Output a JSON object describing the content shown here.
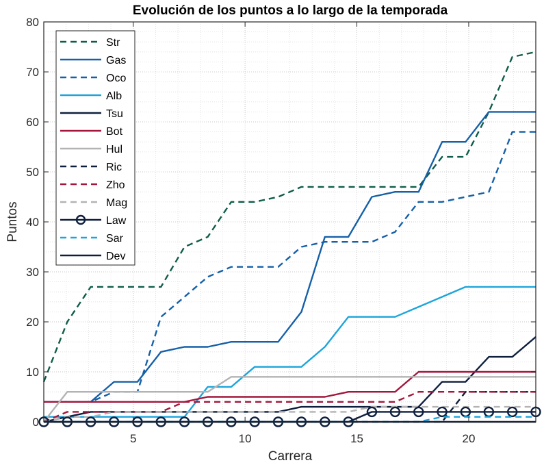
{
  "chart_data": {
    "type": "line",
    "title": "Evolución de los puntos a lo largo de la temporada",
    "xlabel": "Carrera",
    "ylabel": "Puntos",
    "xlim": [
      1,
      23
    ],
    "ylim": [
      0,
      80
    ],
    "xticks": [
      5,
      10,
      15,
      20
    ],
    "yticks": [
      0,
      10,
      20,
      30,
      40,
      50,
      60,
      70,
      80
    ],
    "grid": true,
    "minor_grid": true,
    "legend_position": "top-left",
    "x": [
      1,
      2.05,
      3.1,
      4.14,
      5.19,
      6.24,
      7.29,
      8.33,
      9.38,
      10.43,
      11.48,
      12.52,
      13.57,
      14.62,
      15.67,
      16.71,
      17.76,
      18.81,
      19.86,
      20.9,
      21.95,
      23
    ],
    "series": [
      {
        "name": "Str",
        "color": "#0f5c4a",
        "style": "dashed",
        "marker": "none",
        "values": [
          8,
          20,
          27,
          27,
          27,
          27,
          35,
          37,
          44,
          44,
          45,
          47,
          47,
          47,
          47,
          47,
          47,
          53,
          53,
          62,
          73,
          74
        ]
      },
      {
        "name": "Gas",
        "color": "#1560a8",
        "style": "solid",
        "marker": "none",
        "values": [
          4,
          4,
          4,
          8,
          8,
          14,
          15,
          15,
          16,
          16,
          16,
          22,
          37,
          37,
          45,
          46,
          46,
          56,
          56,
          62,
          62,
          62
        ]
      },
      {
        "name": "Oco",
        "color": "#1560a8",
        "style": "dashed",
        "marker": "none",
        "values": [
          4,
          4,
          4,
          6,
          6,
          21,
          25,
          29,
          31,
          31,
          31,
          35,
          36,
          36,
          36,
          38,
          44,
          44,
          45,
          46,
          58,
          58
        ]
      },
      {
        "name": "Alb",
        "color": "#1ba5dc",
        "style": "solid",
        "marker": "none",
        "values": [
          1,
          1,
          1,
          1,
          1,
          1,
          1,
          7,
          7,
          11,
          11,
          11,
          15,
          21,
          21,
          21,
          23,
          25,
          27,
          27,
          27,
          27
        ]
      },
      {
        "name": "Tsu",
        "color": "#0e1f3d",
        "style": "solid",
        "marker": "none",
        "values": [
          0,
          1,
          2,
          2,
          2,
          2,
          2,
          2,
          2,
          2,
          2,
          3,
          3,
          3,
          3,
          3,
          3,
          8,
          8,
          13,
          13,
          17
        ]
      },
      {
        "name": "Bot",
        "color": "#a3173c",
        "style": "solid",
        "marker": "none",
        "values": [
          4,
          4,
          4,
          4,
          4,
          4,
          4,
          5,
          5,
          5,
          5,
          5,
          5,
          6,
          6,
          6,
          10,
          10,
          10,
          10,
          10,
          10
        ]
      },
      {
        "name": "Hul",
        "color": "#b3b3b3",
        "style": "solid",
        "marker": "none",
        "values": [
          0,
          6,
          6,
          6,
          6,
          6,
          6,
          6,
          9,
          9,
          9,
          9,
          9,
          9,
          9,
          9,
          9,
          9,
          9,
          9,
          9,
          9
        ]
      },
      {
        "name": "Ric",
        "color": "#0e1f3d",
        "style": "dashed",
        "marker": "none",
        "values": [
          0,
          0,
          0,
          0,
          0,
          0,
          0,
          0,
          0,
          0,
          0,
          0,
          0,
          0,
          0,
          0,
          0,
          0,
          6,
          6,
          6,
          6
        ]
      },
      {
        "name": "Zho",
        "color": "#a3173c",
        "style": "dashed",
        "marker": "none",
        "values": [
          0,
          2,
          2,
          2,
          2,
          2,
          4,
          4,
          4,
          4,
          4,
          4,
          4,
          4,
          4,
          4,
          6,
          6,
          6,
          6,
          6,
          6
        ]
      },
      {
        "name": "Mag",
        "color": "#b3b3b3",
        "style": "dashed",
        "marker": "none",
        "values": [
          0,
          1,
          1,
          2,
          2,
          2,
          2,
          2,
          2,
          2,
          2,
          2,
          2,
          2,
          3,
          3,
          3,
          3,
          3,
          3,
          3,
          3
        ]
      },
      {
        "name": "Law",
        "color": "#0e1f3d",
        "style": "solid",
        "marker": "circle",
        "values": [
          0,
          0,
          0,
          0,
          0,
          0,
          0,
          0,
          0,
          0,
          0,
          0,
          0,
          0,
          2,
          2,
          2,
          2,
          2,
          2,
          2,
          2
        ]
      },
      {
        "name": "Sar",
        "color": "#1ba5dc",
        "style": "dashed",
        "marker": "none",
        "values": [
          0,
          0,
          0,
          0,
          0,
          0,
          0,
          0,
          0,
          0,
          0,
          0,
          0,
          0,
          0,
          0,
          0,
          1,
          1,
          1,
          1,
          1
        ]
      },
      {
        "name": "Dev",
        "color": "#0e1f3d",
        "style": "solid",
        "marker": "none",
        "values": [
          0,
          0,
          0,
          0,
          0,
          0,
          0,
          0,
          0,
          0,
          0,
          0,
          0,
          0,
          0,
          0,
          0,
          0,
          0,
          0,
          0,
          0
        ]
      }
    ]
  }
}
